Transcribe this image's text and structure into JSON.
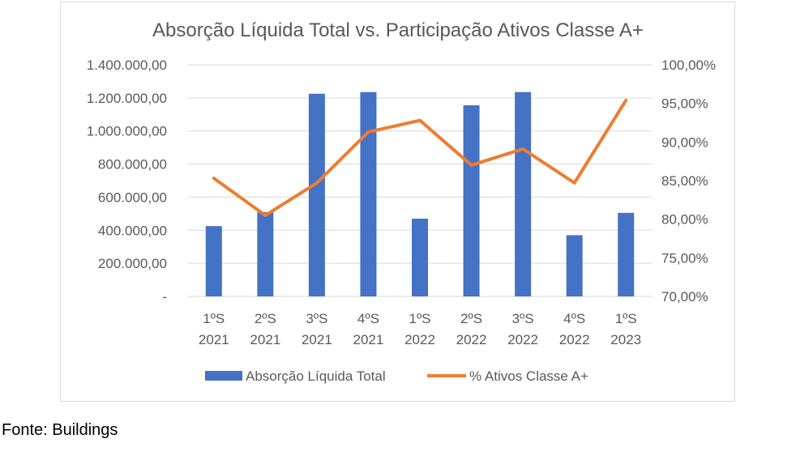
{
  "chart_data": {
    "type": "bar",
    "title": "Absorção Líquida Total vs. Participação Ativos Classe A+",
    "categories": [
      [
        "1ºS",
        "2021"
      ],
      [
        "2ºS",
        "2021"
      ],
      [
        "3ºS",
        "2021"
      ],
      [
        "4ºS",
        "2021"
      ],
      [
        "1ºS",
        "2022"
      ],
      [
        "2ºS",
        "2022"
      ],
      [
        "3ºS",
        "2022"
      ],
      [
        "4ºS",
        "2022"
      ],
      [
        "1ºS",
        "2023"
      ]
    ],
    "series": [
      {
        "name": "Absorção Líquida Total",
        "type": "bar",
        "axis": "left",
        "color": "#4472C4",
        "values": [
          425000,
          510000,
          1225000,
          1235000,
          470000,
          1155000,
          1235000,
          370000,
          505000
        ]
      },
      {
        "name": "% Ativos Classe A+",
        "type": "line",
        "axis": "right",
        "color": "#ED7D31",
        "values": [
          85.3,
          80.5,
          84.7,
          91.3,
          92.8,
          87.0,
          89.1,
          84.7,
          95.4
        ]
      }
    ],
    "y_left": {
      "min": 0,
      "max": 1400000,
      "ticks": [
        "-",
        "200.000,00",
        "400.000,00",
        "600.000,00",
        "800.000,00",
        "1.000.000,00",
        "1.200.000,00",
        "1.400.000,00"
      ]
    },
    "y_right": {
      "min": 70,
      "max": 100,
      "ticks": [
        "70,00%",
        "75,00%",
        "80,00%",
        "85,00%",
        "90,00%",
        "95,00%",
        "100,00%"
      ]
    },
    "grid": true,
    "legend_position": "bottom"
  },
  "footer": {
    "source": "Fonte: Buildings"
  }
}
